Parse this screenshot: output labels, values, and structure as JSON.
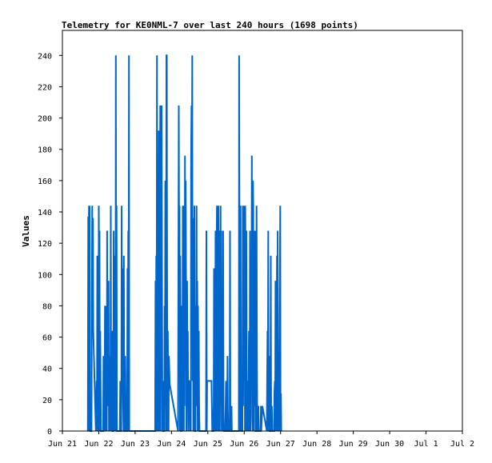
{
  "chart_data": {
    "type": "line",
    "title": "Telemetry for KE0NML-7 over last 240 hours (1698 points)",
    "xlabel": "",
    "ylabel": "Values",
    "x_tick_labels": [
      "Jun 21",
      "Jun 22",
      "Jun 23",
      "Jun 24",
      "Jun 25",
      "Jun 26",
      "Jun 27",
      "Jun 28",
      "Jun 29",
      "Jun 30",
      "Jul 1",
      "Jul 2"
    ],
    "xlim_days": [
      0,
      11
    ],
    "ylim": [
      0,
      256
    ],
    "y_ticks": [
      0,
      20,
      40,
      60,
      80,
      100,
      120,
      140,
      160,
      180,
      200,
      220,
      240
    ],
    "grid": false,
    "series_color": "#0066cc",
    "series": [
      {
        "points": [
          [
            0.7,
            0
          ],
          [
            0.71,
            137
          ],
          [
            0.72,
            0
          ],
          [
            0.73,
            144
          ],
          [
            0.74,
            0
          ],
          [
            0.75,
            144
          ],
          [
            0.76,
            0
          ],
          [
            0.8,
            0
          ],
          [
            0.81,
            80
          ],
          [
            0.82,
            144
          ],
          [
            0.83,
            64
          ],
          [
            0.84,
            136
          ],
          [
            0.85,
            64
          ],
          [
            0.92,
            0
          ],
          [
            0.93,
            16
          ],
          [
            0.94,
            32
          ],
          [
            0.95,
            0
          ],
          [
            0.96,
            112
          ],
          [
            0.97,
            32
          ],
          [
            0.98,
            72
          ],
          [
            0.99,
            0
          ],
          [
            1.0,
            144
          ],
          [
            1.01,
            16
          ],
          [
            1.02,
            128
          ],
          [
            1.03,
            0
          ],
          [
            1.04,
            64
          ],
          [
            1.05,
            32
          ],
          [
            1.06,
            0
          ],
          [
            1.12,
            0
          ],
          [
            1.13,
            48
          ],
          [
            1.14,
            0
          ],
          [
            1.16,
            16
          ],
          [
            1.17,
            80
          ],
          [
            1.18,
            0
          ],
          [
            1.19,
            72
          ],
          [
            1.2,
            16
          ],
          [
            1.21,
            80
          ],
          [
            1.22,
            0
          ],
          [
            1.23,
            128
          ],
          [
            1.24,
            16
          ],
          [
            1.25,
            88
          ],
          [
            1.26,
            32
          ],
          [
            1.27,
            96
          ],
          [
            1.28,
            0
          ],
          [
            1.29,
            48
          ],
          [
            1.3,
            16
          ],
          [
            1.31,
            48
          ],
          [
            1.32,
            0
          ],
          [
            1.33,
            144
          ],
          [
            1.34,
            0
          ],
          [
            1.35,
            48
          ],
          [
            1.36,
            16
          ],
          [
            1.37,
            64
          ],
          [
            1.38,
            0
          ],
          [
            1.4,
            0
          ],
          [
            1.41,
            128
          ],
          [
            1.42,
            16
          ],
          [
            1.43,
            0
          ],
          [
            1.44,
            112
          ],
          [
            1.45,
            8
          ],
          [
            1.46,
            0
          ],
          [
            1.47,
            240
          ],
          [
            1.48,
            8
          ],
          [
            1.49,
            144
          ],
          [
            1.5,
            0
          ],
          [
            1.58,
            0
          ],
          [
            1.59,
            32
          ],
          [
            1.6,
            0
          ],
          [
            1.62,
            0
          ],
          [
            1.63,
            144
          ],
          [
            1.64,
            48
          ],
          [
            1.65,
            104
          ],
          [
            1.66,
            32
          ],
          [
            1.67,
            16
          ],
          [
            1.68,
            0
          ],
          [
            1.69,
            112
          ],
          [
            1.7,
            0
          ],
          [
            1.72,
            0
          ],
          [
            1.73,
            48
          ],
          [
            1.74,
            16
          ],
          [
            1.75,
            0
          ],
          [
            1.78,
            0
          ],
          [
            1.79,
            104
          ],
          [
            1.8,
            0
          ],
          [
            1.81,
            128
          ],
          [
            1.82,
            32
          ],
          [
            1.83,
            240
          ],
          [
            1.84,
            0
          ],
          [
            2.55,
            0
          ],
          [
            2.56,
            96
          ],
          [
            2.57,
            0
          ],
          [
            2.58,
            112
          ],
          [
            2.59,
            0
          ],
          [
            2.6,
            240
          ],
          [
            2.61,
            96
          ],
          [
            2.62,
            0
          ],
          [
            2.63,
            144
          ],
          [
            2.64,
            32
          ],
          [
            2.65,
            192
          ],
          [
            2.66,
            0
          ],
          [
            2.67,
            192
          ],
          [
            2.68,
            64
          ],
          [
            2.69,
            208
          ],
          [
            2.7,
            0
          ],
          [
            2.71,
            112
          ],
          [
            2.72,
            48
          ],
          [
            2.73,
            208
          ],
          [
            2.74,
            104
          ],
          [
            2.75,
            0
          ],
          [
            2.76,
            32
          ],
          [
            2.77,
            0
          ],
          [
            2.8,
            0
          ],
          [
            2.81,
            80
          ],
          [
            2.82,
            16
          ],
          [
            2.83,
            160
          ],
          [
            2.84,
            96
          ],
          [
            2.85,
            0
          ],
          [
            2.86,
            240
          ],
          [
            2.87,
            240
          ],
          [
            2.88,
            96
          ],
          [
            2.89,
            0
          ],
          [
            2.9,
            64
          ],
          [
            2.91,
            16
          ],
          [
            2.92,
            0
          ],
          [
            2.93,
            48
          ],
          [
            2.95,
            30
          ],
          [
            3.18,
            0
          ],
          [
            3.2,
            208
          ],
          [
            3.21,
            112
          ],
          [
            3.22,
            144
          ],
          [
            3.23,
            0
          ],
          [
            3.24,
            112
          ],
          [
            3.25,
            64
          ],
          [
            3.26,
            0
          ],
          [
            3.27,
            0
          ],
          [
            3.29,
            80
          ],
          [
            3.3,
            0
          ],
          [
            3.31,
            144
          ],
          [
            3.32,
            48
          ],
          [
            3.33,
            112
          ],
          [
            3.34,
            0
          ],
          [
            3.35,
            144
          ],
          [
            3.36,
            16
          ],
          [
            3.37,
            176
          ],
          [
            3.38,
            64
          ],
          [
            3.39,
            160
          ],
          [
            3.4,
            104
          ],
          [
            3.41,
            0
          ],
          [
            3.43,
            96
          ],
          [
            3.44,
            16
          ],
          [
            3.45,
            64
          ],
          [
            3.46,
            0
          ],
          [
            3.47,
            32
          ],
          [
            3.48,
            32
          ],
          [
            3.49,
            16
          ],
          [
            3.5,
            32
          ],
          [
            3.51,
            0
          ],
          [
            3.52,
            24
          ],
          [
            3.53,
            0
          ],
          [
            3.54,
            176
          ],
          [
            3.55,
            208
          ],
          [
            3.56,
            144
          ],
          [
            3.57,
            240
          ],
          [
            3.58,
            32
          ],
          [
            3.59,
            136
          ],
          [
            3.6,
            0
          ],
          [
            3.61,
            96
          ],
          [
            3.62,
            16
          ],
          [
            3.63,
            144
          ],
          [
            3.64,
            0
          ],
          [
            3.66,
            0
          ],
          [
            3.67,
            80
          ],
          [
            3.68,
            48
          ],
          [
            3.69,
            144
          ],
          [
            3.7,
            16
          ],
          [
            3.71,
            96
          ],
          [
            3.72,
            0
          ],
          [
            3.73,
            80
          ],
          [
            3.74,
            0
          ],
          [
            3.75,
            64
          ],
          [
            3.76,
            16
          ],
          [
            3.77,
            0
          ],
          [
            3.79,
            0
          ],
          [
            3.95,
            0
          ],
          [
            3.96,
            128
          ],
          [
            3.97,
            0
          ],
          [
            3.98,
            32
          ],
          [
            4.1,
            32
          ],
          [
            4.12,
            0
          ],
          [
            4.15,
            0
          ],
          [
            4.16,
            16
          ],
          [
            4.17,
            104
          ],
          [
            4.18,
            0
          ],
          [
            4.19,
            48
          ],
          [
            4.2,
            0
          ],
          [
            4.21,
            128
          ],
          [
            4.22,
            32
          ],
          [
            4.23,
            0
          ],
          [
            4.24,
            112
          ],
          [
            4.25,
            144
          ],
          [
            4.26,
            0
          ],
          [
            4.27,
            144
          ],
          [
            4.28,
            32
          ],
          [
            4.29,
            144
          ],
          [
            4.3,
            0
          ],
          [
            4.31,
            128
          ],
          [
            4.32,
            48
          ],
          [
            4.33,
            0
          ],
          [
            4.34,
            48
          ],
          [
            4.35,
            144
          ],
          [
            4.36,
            16
          ],
          [
            4.37,
            128
          ],
          [
            4.38,
            0
          ],
          [
            4.4,
            32
          ],
          [
            4.41,
            0
          ],
          [
            4.42,
            128
          ],
          [
            4.43,
            16
          ],
          [
            4.44,
            0
          ],
          [
            4.48,
            0
          ],
          [
            4.49,
            16
          ],
          [
            4.5,
            32
          ],
          [
            4.51,
            0
          ],
          [
            4.53,
            0
          ],
          [
            4.54,
            48
          ],
          [
            4.55,
            16
          ],
          [
            4.56,
            0
          ],
          [
            4.6,
            0
          ],
          [
            4.61,
            128
          ],
          [
            4.62,
            0
          ],
          [
            4.64,
            0
          ],
          [
            4.65,
            16
          ],
          [
            4.66,
            0
          ],
          [
            4.85,
            0
          ],
          [
            4.86,
            240
          ],
          [
            4.87,
            112
          ],
          [
            4.88,
            0
          ],
          [
            4.9,
            144
          ],
          [
            4.91,
            16
          ],
          [
            4.92,
            0
          ],
          [
            4.95,
            0
          ],
          [
            4.96,
            144
          ],
          [
            4.97,
            16
          ],
          [
            4.98,
            96
          ],
          [
            4.99,
            144
          ],
          [
            5.0,
            32
          ],
          [
            5.01,
            112
          ],
          [
            5.02,
            0
          ],
          [
            5.03,
            144
          ],
          [
            5.04,
            64
          ],
          [
            5.05,
            0
          ],
          [
            5.06,
            128
          ],
          [
            5.07,
            16
          ],
          [
            5.08,
            32
          ],
          [
            5.09,
            0
          ],
          [
            5.1,
            16
          ],
          [
            5.11,
            0
          ],
          [
            5.13,
            64
          ],
          [
            5.14,
            16
          ],
          [
            5.15,
            0
          ],
          [
            5.16,
            128
          ],
          [
            5.17,
            0
          ],
          [
            5.19,
            112
          ],
          [
            5.2,
            64
          ],
          [
            5.21,
            176
          ],
          [
            5.22,
            8
          ],
          [
            5.23,
            0
          ],
          [
            5.24,
            160
          ],
          [
            5.25,
            144
          ],
          [
            5.26,
            0
          ],
          [
            5.27,
            128
          ],
          [
            5.28,
            16
          ],
          [
            5.29,
            112
          ],
          [
            5.3,
            128
          ],
          [
            5.31,
            0
          ],
          [
            5.33,
            0
          ],
          [
            5.34,
            144
          ],
          [
            5.35,
            48
          ],
          [
            5.36,
            0
          ],
          [
            5.38,
            0
          ],
          [
            5.39,
            16
          ],
          [
            5.4,
            0
          ],
          [
            5.45,
            0
          ],
          [
            5.46,
            16
          ],
          [
            5.47,
            0
          ],
          [
            5.5,
            16
          ],
          [
            5.62,
            0
          ],
          [
            5.63,
            32
          ],
          [
            5.64,
            64
          ],
          [
            5.65,
            0
          ],
          [
            5.66,
            128
          ],
          [
            5.67,
            16
          ],
          [
            5.68,
            48
          ],
          [
            5.69,
            0
          ],
          [
            5.72,
            0
          ],
          [
            5.73,
            112
          ],
          [
            5.74,
            16
          ],
          [
            5.75,
            0
          ],
          [
            5.76,
            16
          ],
          [
            5.77,
            0
          ],
          [
            5.82,
            0
          ],
          [
            5.83,
            24
          ],
          [
            5.84,
            32
          ],
          [
            5.85,
            0
          ],
          [
            5.86,
            96
          ],
          [
            5.87,
            0
          ],
          [
            5.88,
            80
          ],
          [
            5.89,
            0
          ],
          [
            5.9,
            112
          ],
          [
            5.91,
            0
          ],
          [
            5.92,
            128
          ],
          [
            5.93,
            16
          ],
          [
            5.94,
            0
          ],
          [
            5.95,
            16
          ],
          [
            5.96,
            0
          ],
          [
            5.99,
            144
          ],
          [
            6.0,
            0
          ],
          [
            6.01,
            24
          ],
          [
            6.02,
            0
          ]
        ]
      }
    ]
  }
}
